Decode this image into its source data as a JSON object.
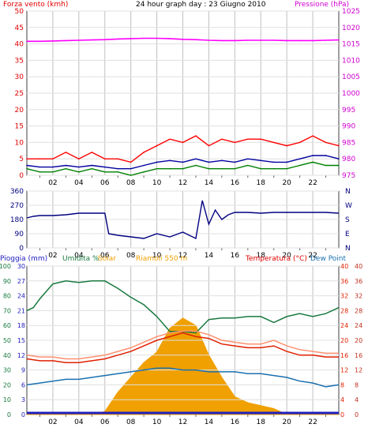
{
  "header": {
    "wind_label": "Forza vento (kmh)",
    "title": "24 hour graph day : 23 Giugno 2010",
    "pressure_label": "Pressione (hPa)"
  },
  "header_bottom": {
    "rain_label": "Pioggia (mm)",
    "humidity_label": "Umidita %",
    "solar_label": "Solar",
    "station_label": "Riamoli 550 m",
    "temperature_label": "Temperatura (°C)",
    "dewpoint_label": "Dew Point"
  },
  "colors": {
    "wind": "#ff0000",
    "wind_avg": "#0000a0",
    "wind_green": "#008000",
    "pressure": "#ff00ff",
    "direction": "#000080",
    "humidity": "#1a7a40",
    "solar": "#f0a000",
    "temperature": "#e02000",
    "apparent": "#ff9070",
    "dewpoint": "#1a70b0",
    "rain_axis": "#2020c0"
  },
  "chart_data": [
    {
      "type": "line",
      "name": "wind_pressure",
      "x_ticks": [
        "02",
        "04",
        "06",
        "08",
        "10",
        "12",
        "14",
        "16",
        "18",
        "20",
        "22"
      ],
      "xlim": [
        0,
        24
      ],
      "left_axis": {
        "label": "Forza vento (kmh)",
        "ticks": [
          0,
          5,
          10,
          15,
          20,
          25,
          30,
          35,
          40,
          45,
          50
        ],
        "ylim": [
          0,
          50
        ]
      },
      "right_axis": {
        "label": "Pressione (hPa)",
        "ticks": [
          975,
          980,
          985,
          990,
          995,
          1000,
          1005,
          1010,
          1015,
          1020,
          1025
        ],
        "ylim": [
          975,
          1025
        ]
      },
      "series": [
        {
          "axis": "right",
          "color": "#ff00ff",
          "x": [
            0,
            1,
            2,
            3,
            4,
            5,
            6,
            7,
            8,
            9,
            10,
            11,
            12,
            13,
            14,
            15,
            16,
            17,
            18,
            19,
            20,
            21,
            22,
            23,
            24
          ],
          "y": [
            1015.8,
            1015.8,
            1015.9,
            1016.0,
            1016.1,
            1016.2,
            1016.3,
            1016.5,
            1016.6,
            1016.7,
            1016.7,
            1016.6,
            1016.4,
            1016.3,
            1016.1,
            1016.0,
            1016.0,
            1016.1,
            1016.1,
            1016.1,
            1016.0,
            1016.0,
            1016.0,
            1016.1,
            1016.2
          ]
        },
        {
          "axis": "left",
          "color": "#ff0000",
          "x": [
            0,
            1,
            2,
            3,
            4,
            5,
            6,
            7,
            8,
            9,
            10,
            11,
            12,
            13,
            14,
            15,
            16,
            17,
            18,
            19,
            20,
            21,
            22,
            23,
            24
          ],
          "y": [
            5,
            5,
            5,
            7,
            5,
            7,
            5,
            5,
            4,
            7,
            9,
            11,
            10,
            12,
            9,
            11,
            10,
            11,
            11,
            10,
            9,
            10,
            12,
            10,
            9
          ]
        },
        {
          "axis": "left",
          "color": "#0000a0",
          "x": [
            0,
            1,
            2,
            3,
            4,
            5,
            6,
            7,
            8,
            9,
            10,
            11,
            12,
            13,
            14,
            15,
            16,
            17,
            18,
            19,
            20,
            21,
            22,
            23,
            24
          ],
          "y": [
            3,
            2.5,
            2.5,
            3,
            2.5,
            3,
            2.5,
            2,
            2,
            3,
            4,
            4.5,
            4,
            5,
            4,
            4.5,
            4,
            5,
            4.5,
            4,
            4,
            5,
            6,
            6,
            5
          ]
        },
        {
          "axis": "left",
          "color": "#008000",
          "x": [
            0,
            1,
            2,
            3,
            4,
            5,
            6,
            7,
            8,
            9,
            10,
            11,
            12,
            13,
            14,
            15,
            16,
            17,
            18,
            19,
            20,
            21,
            22,
            23,
            24
          ],
          "y": [
            2,
            1,
            1,
            2,
            1,
            2,
            1,
            1,
            0,
            1,
            2,
            2,
            2,
            3,
            2,
            2,
            2,
            3,
            2,
            2,
            2,
            3,
            4,
            3,
            3
          ]
        }
      ]
    },
    {
      "type": "line",
      "name": "wind_direction",
      "x_ticks": [
        "02",
        "04",
        "06",
        "08",
        "10",
        "12",
        "14",
        "16",
        "18",
        "20",
        "22"
      ],
      "xlim": [
        0,
        24
      ],
      "left_axis": {
        "ticks": [
          0,
          90,
          180,
          270,
          360
        ],
        "ylim": [
          0,
          360
        ]
      },
      "right_axis": {
        "labels": [
          "N",
          "W",
          "S",
          "E",
          "N"
        ]
      },
      "series": [
        {
          "color": "#000080",
          "x": [
            0,
            0.5,
            1,
            2,
            3,
            4,
            5,
            6,
            6.3,
            7,
            8,
            9,
            10,
            11,
            12,
            13,
            13.5,
            14,
            14.5,
            15,
            15.5,
            16,
            17,
            18,
            19,
            20,
            21,
            22,
            23,
            24
          ],
          "y": [
            190,
            200,
            205,
            205,
            210,
            220,
            220,
            220,
            90,
            80,
            70,
            60,
            90,
            70,
            100,
            60,
            300,
            150,
            240,
            180,
            210,
            225,
            225,
            220,
            225,
            225,
            225,
            225,
            225,
            220
          ]
        }
      ]
    },
    {
      "type": "line",
      "name": "rain_humidity_solar_temperature",
      "x_ticks": [
        "02",
        "04",
        "06",
        "08",
        "10",
        "12",
        "14",
        "16",
        "18",
        "20",
        "22"
      ],
      "xlim": [
        0,
        24
      ],
      "axes": {
        "rain": {
          "ticks": [
            0,
            3,
            6,
            9,
            12,
            15,
            18,
            21,
            24,
            27,
            30
          ],
          "ylim": [
            0,
            30
          ]
        },
        "humidity": {
          "ticks": [
            0,
            10,
            20,
            30,
            40,
            50,
            60,
            70,
            80,
            90,
            100
          ],
          "ylim": [
            0,
            100
          ]
        },
        "temperature": {
          "ticks": [
            0,
            4,
            8,
            12,
            16,
            20,
            24,
            28,
            32,
            36,
            40
          ],
          "ylim": [
            0,
            40
          ]
        },
        "dewpoint": {
          "ticks": [
            0,
            4,
            8,
            12,
            16,
            20,
            24,
            28,
            32,
            36,
            40
          ],
          "ylim": [
            0,
            40
          ]
        }
      },
      "series": [
        {
          "axis": "humidity",
          "color": "#1a7a40",
          "x": [
            0,
            0.5,
            1,
            2,
            3,
            4,
            5,
            6,
            7,
            8,
            9,
            10,
            11,
            12,
            13,
            14,
            15,
            16,
            17,
            18,
            19,
            20,
            21,
            22,
            23,
            24
          ],
          "y": [
            70,
            72,
            78,
            88,
            90,
            89,
            90,
            90,
            85,
            79,
            74,
            66,
            56,
            56,
            55,
            64,
            65,
            65,
            66,
            66,
            62,
            66,
            68,
            66,
            68,
            72
          ]
        },
        {
          "axis": "temperature",
          "color": "#ff9070",
          "x": [
            0,
            1,
            2,
            3,
            4,
            5,
            6,
            7,
            8,
            9,
            10,
            11,
            12,
            13,
            14,
            15,
            16,
            17,
            18,
            19,
            20,
            21,
            22,
            23,
            24
          ],
          "y": [
            16,
            15.5,
            15.5,
            15,
            15,
            15.5,
            16,
            17,
            18,
            19.5,
            21,
            22,
            22.5,
            22.5,
            21.5,
            20,
            19.5,
            19,
            19,
            20,
            18.5,
            17.5,
            17,
            16.5,
            16.5
          ]
        },
        {
          "axis": "temperature",
          "color": "#e02000",
          "x": [
            0,
            1,
            2,
            3,
            4,
            5,
            6,
            7,
            8,
            9,
            10,
            11,
            12,
            13,
            14,
            15,
            16,
            17,
            18,
            19,
            20,
            21,
            22,
            23,
            24
          ],
          "y": [
            15,
            14.5,
            14.5,
            14,
            14,
            14.5,
            15,
            16,
            17,
            18.5,
            20,
            21,
            22,
            21,
            20.5,
            19,
            18.5,
            18,
            18,
            18.5,
            17,
            16,
            16,
            15.5,
            15.5
          ]
        },
        {
          "axis": "dewpoint",
          "color": "#1a70b0",
          "x": [
            0,
            1,
            2,
            3,
            4,
            5,
            6,
            7,
            8,
            9,
            10,
            11,
            12,
            13,
            14,
            15,
            16,
            17,
            18,
            19,
            20,
            21,
            22,
            23,
            24
          ],
          "y": [
            8,
            8.5,
            9,
            9.5,
            9.5,
            10,
            10.5,
            11,
            11.5,
            12,
            12.5,
            12.5,
            12,
            12,
            11.5,
            11.5,
            11.5,
            11,
            11,
            10.5,
            10,
            9,
            8.5,
            7.5,
            8
          ]
        },
        {
          "axis": "humidity",
          "type": "area",
          "color": "#f0a000",
          "x": [
            0,
            5,
            6,
            7,
            8,
            9,
            10,
            11,
            12,
            13,
            14,
            15,
            16,
            17,
            18,
            19,
            20,
            24
          ],
          "y": [
            0,
            0,
            2,
            15,
            25,
            35,
            42,
            58,
            65,
            60,
            40,
            25,
            12,
            8,
            6,
            4,
            0,
            0
          ]
        }
      ]
    }
  ]
}
